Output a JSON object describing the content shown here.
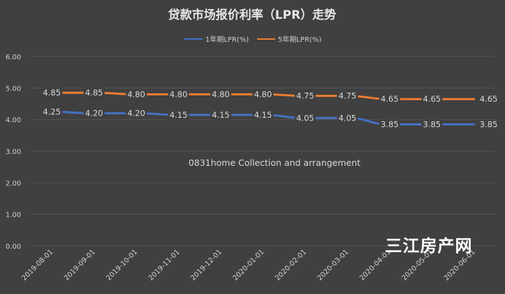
{
  "chart_data": {
    "type": "line",
    "title": "贷款市场报价利率（LPR）走势",
    "categories": [
      "2019-08-01",
      "2019-09-01",
      "2019-10-01",
      "2019-11-01",
      "2019-12-01",
      "2020-01-01",
      "2020-02-01",
      "2020-03-01",
      "2020-04-01",
      "2020-05-01",
      "2020-06-01"
    ],
    "series": [
      {
        "name": "1年期LPR(%)",
        "color": "#4472c4",
        "values": [
          4.25,
          4.2,
          4.2,
          4.15,
          4.15,
          4.15,
          4.05,
          4.05,
          3.85,
          3.85,
          3.85
        ]
      },
      {
        "name": "5年期LPR(%)",
        "color": "#ed7d31",
        "values": [
          4.85,
          4.85,
          4.8,
          4.8,
          4.8,
          4.8,
          4.75,
          4.75,
          4.65,
          4.65,
          4.65
        ]
      }
    ],
    "yticks": [
      "0.00",
      "1.00",
      "2.00",
      "3.00",
      "4.00",
      "5.00",
      "6.00"
    ],
    "ylim": [
      0,
      6
    ],
    "grid": true,
    "legend": "top",
    "annotation": "0831home Collection and arrangement"
  },
  "watermark": "三江房产网"
}
